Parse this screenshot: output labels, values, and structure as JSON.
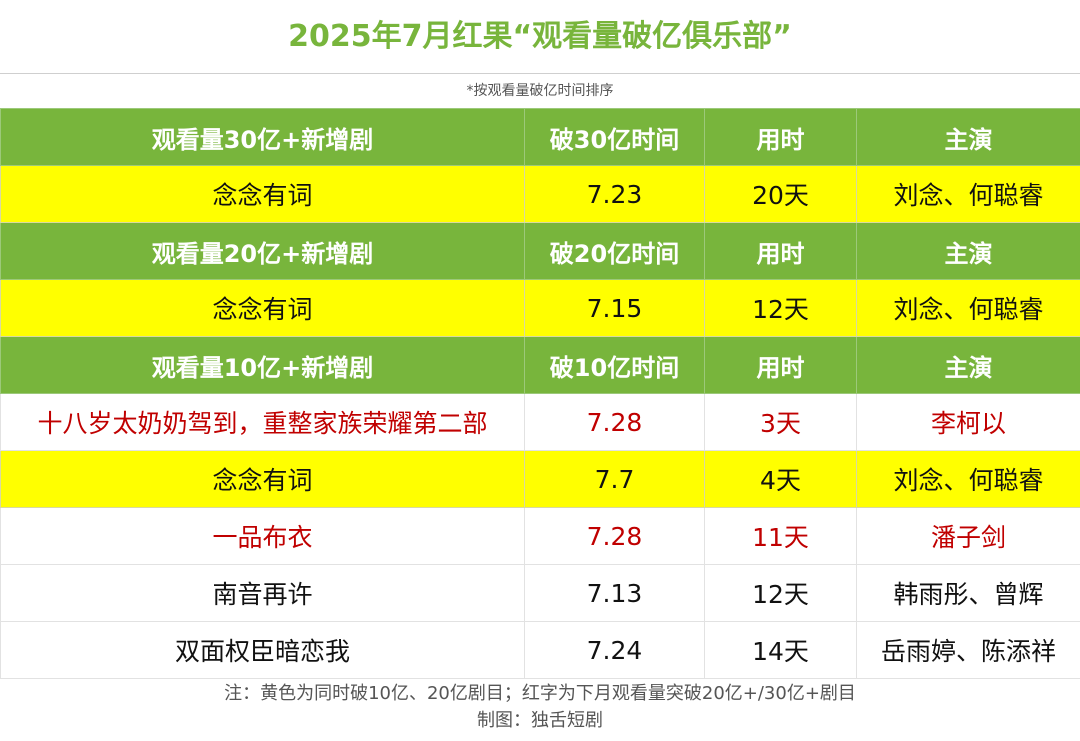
{
  "title": "2025年7月红果“观看量破亿俱乐部”",
  "subtitle": "*按观看量破亿时间排序",
  "sections": [
    {
      "header": [
        "观看量30亿+新增剧",
        "破30亿时间",
        "用时",
        "主演"
      ],
      "rows": [
        {
          "style": "yellow",
          "cells": [
            "念念有词",
            "7.23",
            "20天",
            "刘念、何聪睿"
          ]
        }
      ]
    },
    {
      "header": [
        "观看量20亿+新增剧",
        "破20亿时间",
        "用时",
        "主演"
      ],
      "rows": [
        {
          "style": "yellow",
          "cells": [
            "念念有词",
            "7.15",
            "12天",
            "刘念、何聪睿"
          ]
        }
      ]
    },
    {
      "header": [
        "观看量10亿+新增剧",
        "破10亿时间",
        "用时",
        "主演"
      ],
      "rows": [
        {
          "style": "red",
          "cells": [
            "十八岁太奶奶驾到，重整家族荣耀第二部",
            "7.28",
            "3天",
            "李柯以"
          ]
        },
        {
          "style": "yellow",
          "cells": [
            "念念有词",
            "7.7",
            "4天",
            "刘念、何聪睿"
          ]
        },
        {
          "style": "red",
          "cells": [
            "一品布衣",
            "7.28",
            "11天",
            "潘子剑"
          ]
        },
        {
          "style": "plain",
          "cells": [
            "南音再许",
            "7.13",
            "12天",
            "韩雨彤、曾辉"
          ]
        },
        {
          "style": "plain",
          "cells": [
            "双面权臣暗恋我",
            "7.24",
            "14天",
            "岳雨婷、陈添祥"
          ]
        }
      ]
    }
  ],
  "note": "注：黄色为同时破10亿、20亿剧目；红字为下月观看量突破20亿+/30亿+剧目",
  "credit": "制图：独舌短剧",
  "colors": {
    "header_green": "#78b53c",
    "highlight_yellow": "#ffff00",
    "red_text": "#c00000"
  }
}
